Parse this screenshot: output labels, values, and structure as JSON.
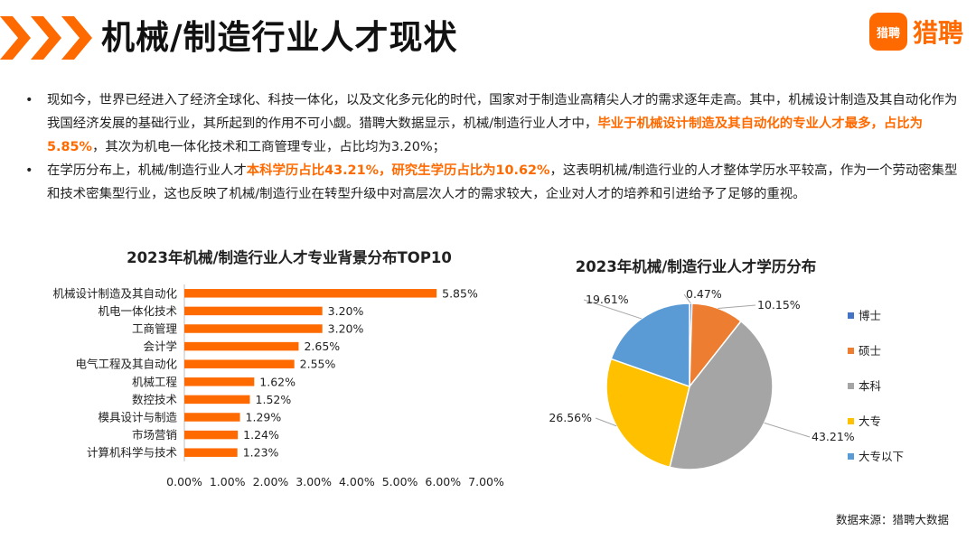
{
  "header": {
    "title": "机械/制造行业人才现状",
    "logo_icon_text": "猎聘",
    "logo_text": "猎聘"
  },
  "bullets": [
    {
      "segments": [
        {
          "text": "现如今，世界已经进入了经济全球化、科技一体化，以及文化多元化的时代，国家对于制造业高精尖人才的需求逐年走高。其中，机械设计制造及其自动化作为我国经济发展的基础行业，其所起到的作用不可小觑。猎聘大数据显示，机械/制造行业人才中，",
          "highlight": false
        },
        {
          "text": "毕业于机械设计制造及其自动化的专业人才最多，占比为5.85%",
          "highlight": true
        },
        {
          "text": "，其次为机电一体化技术和工商管理专业，占比均为3.20%；",
          "highlight": false
        }
      ]
    },
    {
      "segments": [
        {
          "text": "在学历分布上，机械/制造行业人才",
          "highlight": false
        },
        {
          "text": "本科学历占比43.21%，研究生学历占比为10.62%",
          "highlight": true
        },
        {
          "text": "，这表明机械/制造行业的人才整体学历水平较高，作为一个劳动密集型和技术密集型行业，这也反映了机械/制造行业在转型升级中对高层次人才的需求较大，企业对人才的培养和引进给予了足够的重视。",
          "highlight": false
        }
      ]
    }
  ],
  "colors": {
    "accent": "#ff6a00",
    "bar": "#ff6a00"
  },
  "chart_data": [
    {
      "type": "bar",
      "orientation": "horizontal",
      "title": "2023年机械/制造行业人才专业背景分布TOP10",
      "categories": [
        "机械设计制造及其自动化",
        "机电一体化技术",
        "工商管理",
        "会计学",
        "电气工程及其自动化",
        "机械工程",
        "数控技术",
        "模具设计与制造",
        "市场营销",
        "计算机科学与技术"
      ],
      "values": [
        5.85,
        3.2,
        3.2,
        2.65,
        2.55,
        1.62,
        1.52,
        1.29,
        1.24,
        1.23
      ],
      "labels": [
        "5.85%",
        "3.20%",
        "3.20%",
        "2.65%",
        "2.55%",
        "1.62%",
        "1.52%",
        "1.29%",
        "1.24%",
        "1.23%"
      ],
      "xlim": [
        0,
        7
      ],
      "xticks": [
        "0.00%",
        "1.00%",
        "2.00%",
        "3.00%",
        "4.00%",
        "5.00%",
        "6.00%",
        "7.00%"
      ],
      "color": "#ff6a00"
    },
    {
      "type": "pie",
      "title": "2023年机械/制造行业人才学历分布",
      "categories": [
        "博士",
        "硕士",
        "本科",
        "大专",
        "大专以下"
      ],
      "values": [
        0.47,
        10.15,
        43.21,
        26.56,
        19.61
      ],
      "labels": [
        "0.47%",
        "10.15%",
        "43.21%",
        "26.56%",
        "19.61%"
      ],
      "colors": [
        "#4472c4",
        "#ed7d31",
        "#a5a5a5",
        "#ffc000",
        "#5b9bd5"
      ],
      "legend": "right"
    }
  ],
  "footer": {
    "source": "数据来源：猎聘大数据"
  }
}
